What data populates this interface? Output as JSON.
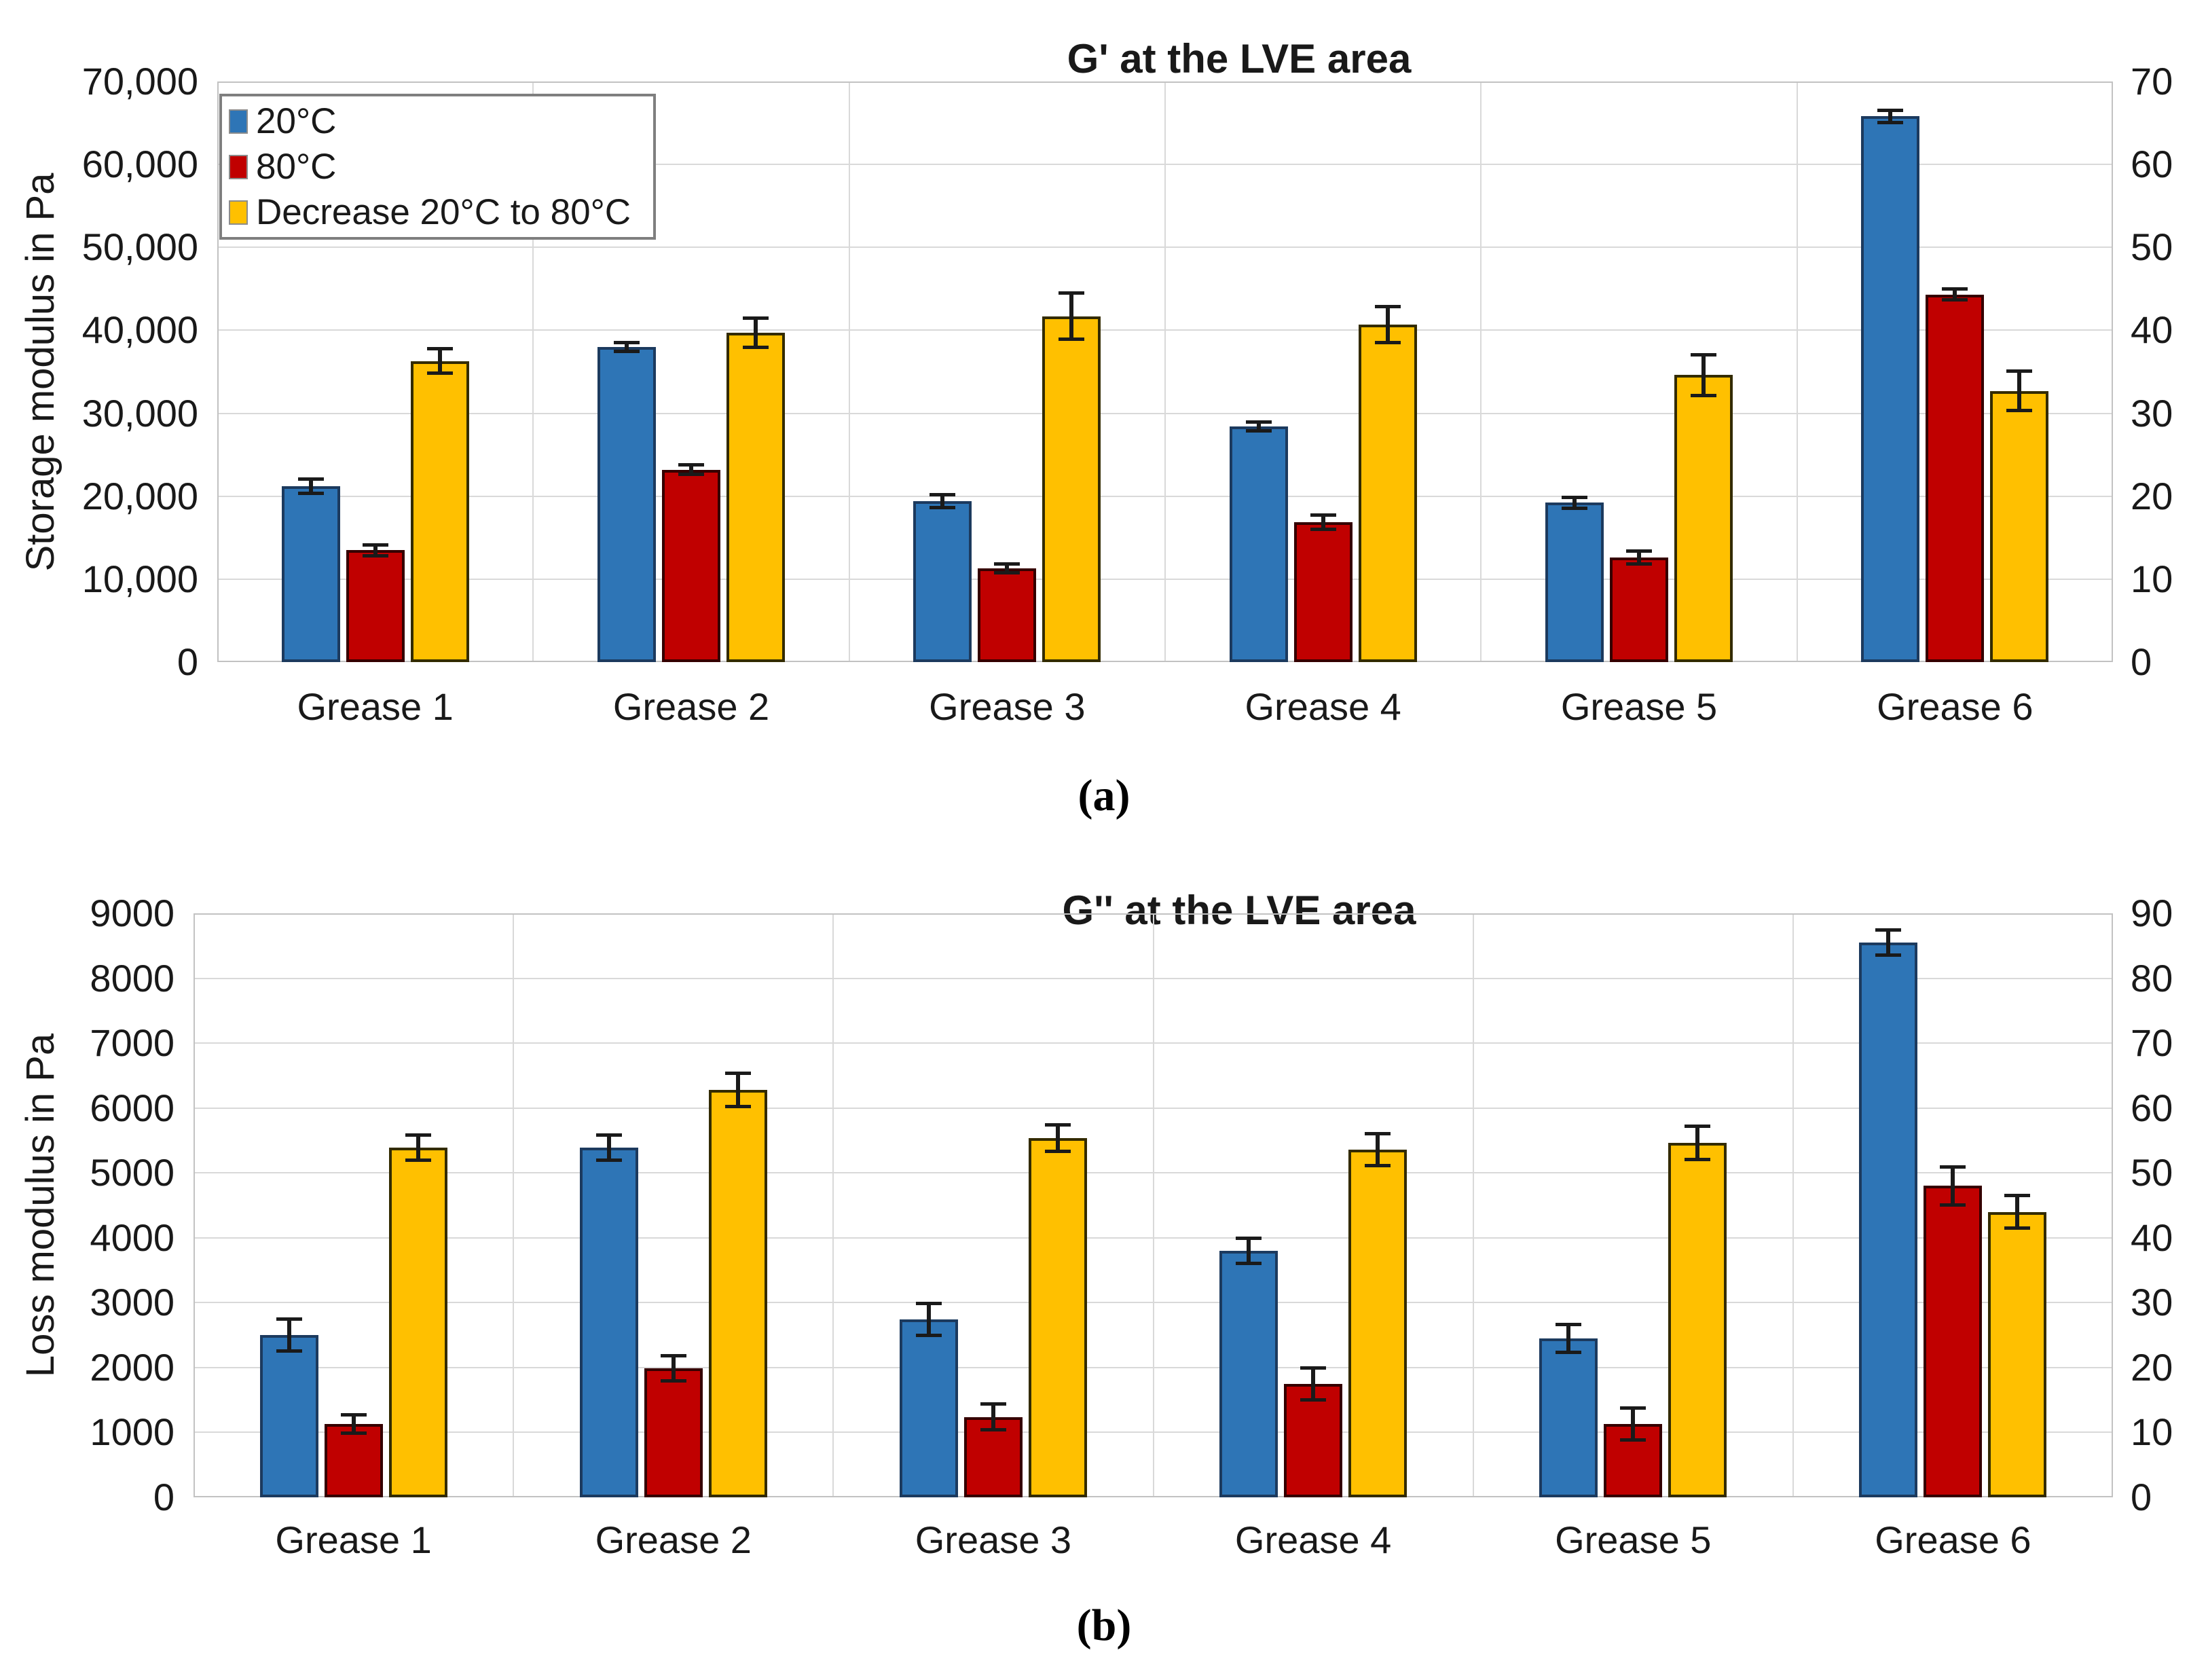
{
  "figure": {
    "caption_a": "(a)",
    "caption_b": "(b)"
  },
  "chart_data": [
    {
      "type": "bar",
      "panel": "a",
      "title": "G' at the LVE area",
      "ylabel": "Storage modulus in Pa",
      "caption": "(a)",
      "categories": [
        "Grease 1",
        "Grease 2",
        "Grease 3",
        "Grease 4",
        "Grease 5",
        "Grease 6"
      ],
      "left_axis": {
        "min": 0,
        "max": 70000,
        "step": 10000,
        "tick_labels": [
          "0",
          "10,000",
          "20,000",
          "30,000",
          "40,000",
          "50,000",
          "60,000",
          "70,000"
        ]
      },
      "right_axis": {
        "min": 0,
        "max": 70,
        "step": 10,
        "tick_labels": [
          "0",
          "10",
          "20",
          "30",
          "40",
          "50",
          "60",
          "70"
        ]
      },
      "grid": true,
      "legend_position": "top-left",
      "series": [
        {
          "name": "20°C",
          "axis": "left",
          "color": "#2E75B6",
          "border": "#1C3A5E",
          "values": [
            21200,
            38000,
            19400,
            28400,
            19200,
            65800
          ],
          "errors": [
            900,
            600,
            800,
            600,
            700,
            800
          ]
        },
        {
          "name": "80°C",
          "axis": "left",
          "color": "#C00000",
          "border": "#350000",
          "values": [
            13500,
            23200,
            11300,
            16900,
            12600,
            44300
          ],
          "errors": [
            700,
            600,
            600,
            900,
            800,
            700
          ]
        },
        {
          "name": "Decrease 20°C to 80°C",
          "axis": "right",
          "color": "#FFC000",
          "border": "#332B00",
          "values": [
            36.3,
            39.7,
            41.7,
            40.7,
            34.6,
            32.7
          ],
          "errors": [
            1.5,
            1.8,
            2.8,
            2.2,
            2.5,
            2.4
          ]
        }
      ]
    },
    {
      "type": "bar",
      "panel": "b",
      "title": "G'' at the LVE area",
      "ylabel": "Loss modulus in Pa",
      "caption": "(b)",
      "categories": [
        "Grease 1",
        "Grease 2",
        "Grease 3",
        "Grease 4",
        "Grease 5",
        "Grease 6"
      ],
      "left_axis": {
        "min": 0,
        "max": 9000,
        "step": 1000,
        "tick_labels": [
          "0",
          "1000",
          "2000",
          "3000",
          "4000",
          "5000",
          "6000",
          "7000",
          "8000",
          "9000"
        ]
      },
      "right_axis": {
        "min": 0,
        "max": 90,
        "step": 10,
        "tick_labels": [
          "0",
          "10",
          "20",
          "30",
          "40",
          "50",
          "60",
          "70",
          "80",
          "90"
        ]
      },
      "grid": true,
      "legend_position": null,
      "series": [
        {
          "name": "20°C",
          "axis": "left",
          "color": "#2E75B6",
          "border": "#1C3A5E",
          "values": [
            2500,
            5390,
            2740,
            3800,
            2450,
            8550
          ],
          "errors": [
            250,
            200,
            250,
            200,
            220,
            200
          ]
        },
        {
          "name": "80°C",
          "axis": "left",
          "color": "#C00000",
          "border": "#350000",
          "values": [
            1130,
            1990,
            1240,
            1750,
            1130,
            4800
          ],
          "errors": [
            150,
            200,
            200,
            250,
            250,
            300
          ]
        },
        {
          "name": "Decrease 20°C to 80°C",
          "axis": "right",
          "color": "#FFC000",
          "border": "#332B00",
          "values": [
            53.9,
            62.8,
            55.4,
            53.6,
            54.6,
            44.0
          ],
          "errors": [
            2.0,
            2.6,
            2.1,
            2.5,
            2.6,
            2.6
          ]
        }
      ]
    }
  ]
}
